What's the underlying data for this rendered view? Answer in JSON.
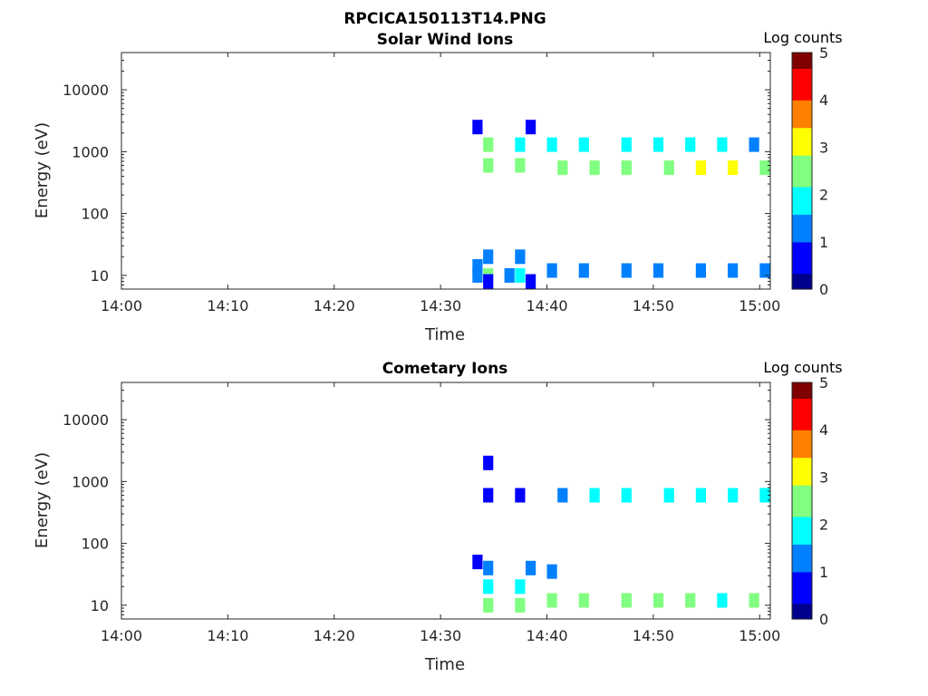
{
  "figure_title": "RPCICA150113T14.PNG",
  "colormap": [
    "#00008f",
    "#0000ff",
    "#0080ff",
    "#00ffff",
    "#80ff80",
    "#ffff00",
    "#ff8000",
    "#ff0000",
    "#800000"
  ],
  "chart_data": [
    {
      "type": "heatmap",
      "title": "Solar Wind Ions",
      "xlabel": "Time",
      "ylabel": "Energy (eV)",
      "yscale": "log",
      "ylim": [
        6,
        40000
      ],
      "xlim": [
        "14:00",
        "15:01"
      ],
      "x_ticks": [
        "14:00",
        "14:10",
        "14:20",
        "14:30",
        "14:40",
        "14:50",
        "15:00"
      ],
      "y_ticks": [
        "10",
        "100",
        "1000",
        "10000"
      ],
      "colorbar": {
        "label": "Log counts",
        "range": [
          0,
          5
        ],
        "ticks": [
          "0",
          "1",
          "2",
          "3",
          "4",
          "5"
        ]
      },
      "cells": [
        [
          "14:33",
          10,
          1.5
        ],
        [
          "14:34",
          10,
          2.2
        ],
        [
          "14:33",
          14,
          1.0
        ],
        [
          "14:34",
          20,
          1.3
        ],
        [
          "14:34",
          8,
          0.8
        ],
        [
          "14:36",
          10,
          1.1
        ],
        [
          "14:37",
          10,
          1.8
        ],
        [
          "14:37",
          20,
          1.0
        ],
        [
          "14:38",
          8,
          0.7
        ],
        [
          "14:34",
          600,
          2.5
        ],
        [
          "14:34",
          1300,
          2.2
        ],
        [
          "14:33",
          2500,
          0.5
        ],
        [
          "14:37",
          600,
          2.6
        ],
        [
          "14:37",
          1300,
          2.0
        ],
        [
          "14:38",
          2500,
          0.5
        ],
        [
          "14:40",
          1300,
          2.0
        ],
        [
          "14:40",
          12,
          1.3
        ],
        [
          "14:41",
          550,
          2.6
        ],
        [
          "14:43",
          1300,
          1.7
        ],
        [
          "14:44",
          550,
          2.5
        ],
        [
          "14:43",
          12,
          1.2
        ],
        [
          "14:47",
          1300,
          2.0
        ],
        [
          "14:47",
          550,
          2.5
        ],
        [
          "14:47",
          12,
          1.3
        ],
        [
          "14:50",
          1300,
          1.8
        ],
        [
          "14:51",
          550,
          2.6
        ],
        [
          "14:50",
          12,
          1.3
        ],
        [
          "14:53",
          1300,
          1.8
        ],
        [
          "14:54",
          550,
          3.2
        ],
        [
          "14:54",
          12,
          1.2
        ],
        [
          "14:56",
          1300,
          2.0
        ],
        [
          "14:57",
          550,
          3.0
        ],
        [
          "14:57",
          12,
          1.2
        ],
        [
          "14:59",
          1300,
          1.5
        ],
        [
          "15:00",
          550,
          2.8
        ],
        [
          "15:00",
          12,
          1.4
        ]
      ]
    },
    {
      "type": "heatmap",
      "title": "Cometary Ions",
      "xlabel": "Time",
      "ylabel": "Energy (eV)",
      "yscale": "log",
      "ylim": [
        6,
        40000
      ],
      "xlim": [
        "14:00",
        "15:01"
      ],
      "x_ticks": [
        "14:00",
        "14:10",
        "14:20",
        "14:30",
        "14:40",
        "14:50",
        "15:00"
      ],
      "y_ticks": [
        "10",
        "100",
        "1000",
        "10000"
      ],
      "colorbar": {
        "label": "Log counts",
        "range": [
          0,
          5
        ],
        "ticks": [
          "0",
          "1",
          "2",
          "3",
          "4",
          "5"
        ]
      },
      "cells": [
        [
          "14:33",
          50,
          0.7
        ],
        [
          "14:34",
          10,
          2.6
        ],
        [
          "14:34",
          20,
          2.1
        ],
        [
          "14:34",
          40,
          1.5
        ],
        [
          "14:37",
          10,
          2.3
        ],
        [
          "14:37",
          20,
          1.8
        ],
        [
          "14:38",
          40,
          1.2
        ],
        [
          "14:37",
          600,
          0.6
        ],
        [
          "14:34",
          600,
          0.9
        ],
        [
          "14:34",
          2000,
          0.5
        ],
        [
          "14:40",
          12,
          2.5
        ],
        [
          "14:40",
          35,
          1.2
        ],
        [
          "14:41",
          600,
          1.5
        ],
        [
          "14:43",
          12,
          2.4
        ],
        [
          "14:44",
          600,
          1.7
        ],
        [
          "14:47",
          12,
          2.2
        ],
        [
          "14:47",
          600,
          1.8
        ],
        [
          "14:50",
          12,
          2.2
        ],
        [
          "14:51",
          600,
          1.6
        ],
        [
          "14:53",
          12,
          2.2
        ],
        [
          "14:54",
          600,
          2.0
        ],
        [
          "14:56",
          12,
          2.0
        ],
        [
          "14:57",
          600,
          2.0
        ],
        [
          "14:59",
          12,
          2.4
        ],
        [
          "15:00",
          600,
          2.1
        ]
      ]
    }
  ]
}
